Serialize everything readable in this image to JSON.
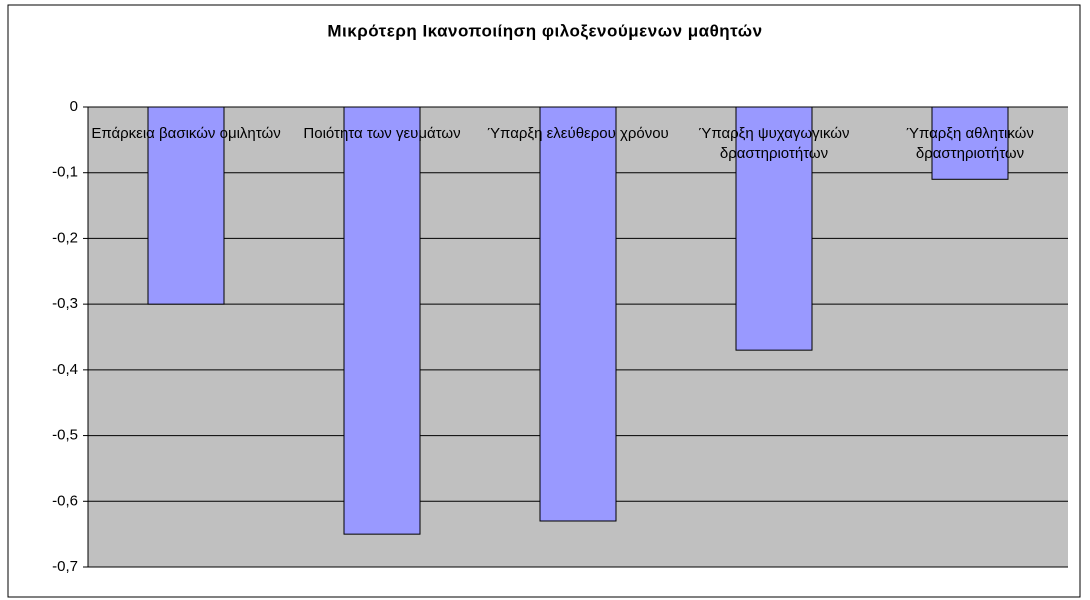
{
  "chart_data": {
    "type": "bar",
    "title": "Μικρότερη Ικανοποιίηση φιλοξενούμενων μαθητών",
    "categories": [
      "Επάρκεια βασικών ομιλητών",
      "Ποιότητα των γευμάτων",
      "Ύπαρξη ελεύθερου χρόνου",
      "Ύπαρξη ψυχαγωγικών δραστηριοτήτων",
      "Ύπαρξη αθλητικών δραστηριοτήτων"
    ],
    "values": [
      -0.3,
      -0.65,
      -0.63,
      -0.37,
      -0.11
    ],
    "color": "#9999ff",
    "ylim": [
      -0.7,
      0
    ],
    "yticks": [
      0,
      {
        "value": -0.1,
        "label": "-0,1"
      },
      {
        "value": -0.2,
        "label": "-0,2"
      },
      {
        "value": -0.3,
        "label": "-0,3"
      },
      {
        "value": -0.4,
        "label": "-0,4"
      },
      {
        "value": -0.5,
        "label": "-0,5"
      },
      {
        "value": -0.6,
        "label": "-0,6"
      },
      {
        "value": -0.7,
        "label": "-0,7"
      }
    ],
    "grid": true
  }
}
